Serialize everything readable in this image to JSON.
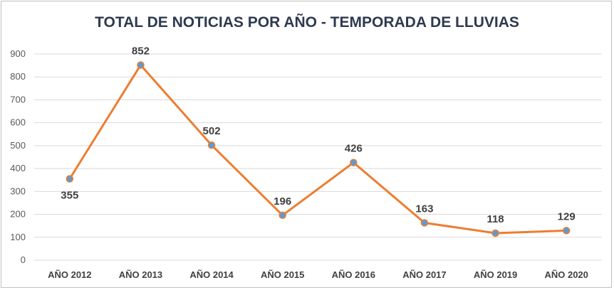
{
  "chart_data": {
    "type": "line",
    "title": "TOTAL DE NOTICIAS POR AÑO - TEMPORADA DE LLUVIAS",
    "categories": [
      "AÑO 2012",
      "AÑO 2013",
      "AÑO 2014",
      "AÑO 2015",
      "AÑO 2016",
      "AÑO 2017",
      "AÑO 2019",
      "AÑO 2020"
    ],
    "values": [
      355,
      852,
      502,
      196,
      426,
      163,
      118,
      129
    ],
    "data_labels": [
      "355",
      "852",
      "502",
      "196",
      "426",
      "163",
      "118",
      "129"
    ],
    "label_positions": [
      "below",
      "above",
      "above",
      "above",
      "above",
      "above",
      "above",
      "above"
    ],
    "xlabel": "",
    "ylabel": "",
    "ylim": [
      0,
      900
    ],
    "yticks": [
      "0",
      "100",
      "200",
      "300",
      "400",
      "500",
      "600",
      "700",
      "800",
      "900"
    ],
    "grid": true,
    "legend": "none",
    "line_color": "#ed7d31",
    "marker_color": "#5b9bd5",
    "grid_color": "#d9d9d9",
    "title_color": "#2e3a4f"
  }
}
